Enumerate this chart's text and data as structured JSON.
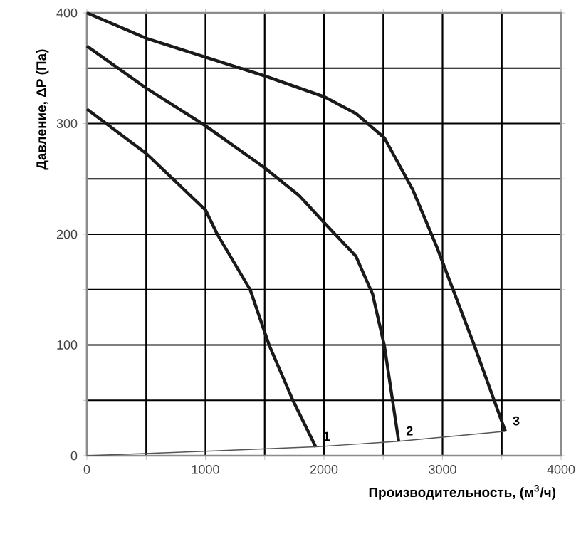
{
  "chart_data": {
    "type": "line",
    "xlabel": "Производительность, (м$^{3}$/ч)",
    "ylabel": "Давление, ΔP (Па)",
    "xlim": [
      0,
      4000
    ],
    "ylim": [
      0,
      400
    ],
    "xticks": [
      0,
      {
        "value": 500,
        "label": null
      },
      1000,
      {
        "value": 1500,
        "label": null
      },
      2000,
      {
        "value": 2500,
        "label": null
      },
      3000,
      {
        "value": 3500,
        "label": null
      },
      4000
    ],
    "yticks": [
      0,
      {
        "value": 50,
        "label": null
      },
      100,
      {
        "value": 150,
        "label": null
      },
      200,
      {
        "value": 250,
        "label": null
      },
      300,
      {
        "value": 350,
        "label": null
      },
      400
    ],
    "grid": true,
    "marker": "none",
    "line_style": "solid",
    "series": [
      {
        "name": "1",
        "color": "#1a1a1a",
        "x": [
          0,
          500,
          1000,
          1100,
          1377,
          1537,
          1738,
          1930
        ],
        "values": [
          313,
          273,
          222,
          200,
          150,
          100,
          50,
          8
        ]
      },
      {
        "name": "2",
        "color": "#1a1a1a",
        "x": [
          0,
          500,
          1000,
          1500,
          1790,
          2006,
          2270,
          2410,
          2510,
          2630
        ],
        "values": [
          370,
          332,
          298,
          260,
          235,
          210,
          180,
          146,
          99,
          13
        ]
      },
      {
        "name": "3",
        "color": "#1a1a1a",
        "x": [
          0,
          500,
          1000,
          1500,
          2006,
          2270,
          2510,
          2750,
          2950,
          3270,
          3530
        ],
        "values": [
          400,
          377,
          360,
          343,
          324,
          309,
          287,
          240,
          189,
          99,
          22
        ]
      },
      {
        "color": "#555555",
        "x": [
          0,
          1000,
          1930,
          2630,
          3530
        ],
        "values": [
          0,
          4,
          8,
          13,
          22
        ]
      }
    ]
  }
}
